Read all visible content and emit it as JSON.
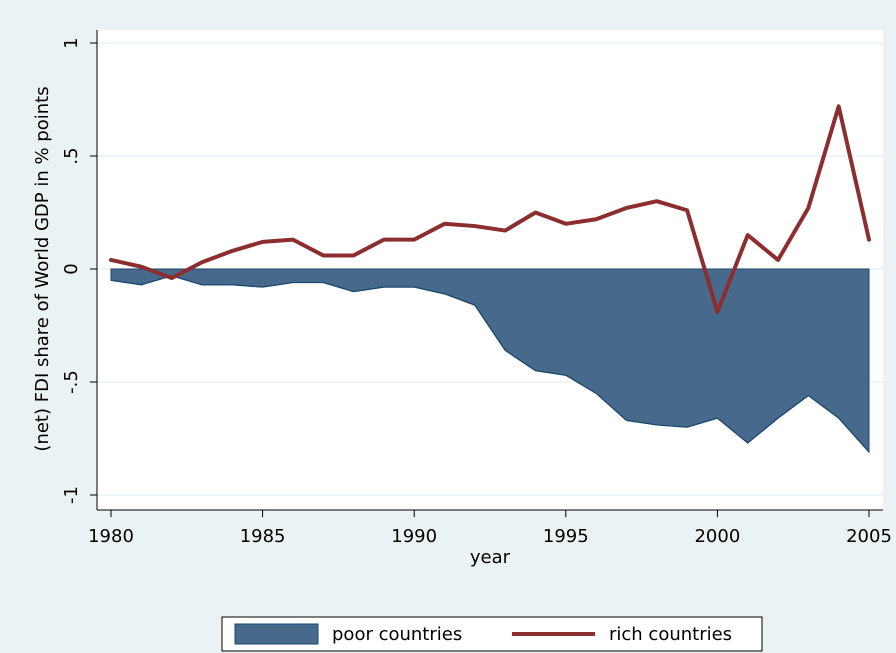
{
  "chart_data": {
    "type": "line",
    "x_label": "year",
    "y_label": "(net) FDI share of World GDP in % points",
    "x": [
      1980,
      1981,
      1982,
      1983,
      1984,
      1985,
      1986,
      1987,
      1988,
      1989,
      1990,
      1991,
      1992,
      1993,
      1994,
      1995,
      1996,
      1997,
      1998,
      1999,
      2000,
      2001,
      2002,
      2003,
      2004,
      2005
    ],
    "series": [
      {
        "name": "poor countries",
        "style": "area",
        "color": "#476a8c",
        "values": [
          -0.05,
          -0.07,
          -0.03,
          -0.07,
          -0.07,
          -0.08,
          -0.06,
          -0.06,
          -0.1,
          -0.08,
          -0.08,
          -0.11,
          -0.16,
          -0.36,
          -0.45,
          -0.47,
          -0.55,
          -0.67,
          -0.69,
          -0.7,
          -0.66,
          -0.77,
          -0.66,
          -0.56,
          -0.66,
          -0.81
        ]
      },
      {
        "name": "rich countries",
        "style": "line",
        "color": "#8c2e30",
        "values": [
          0.04,
          0.01,
          -0.04,
          0.03,
          0.08,
          0.12,
          0.13,
          0.06,
          0.06,
          0.13,
          0.13,
          0.2,
          0.19,
          0.17,
          0.25,
          0.2,
          0.22,
          0.27,
          0.3,
          0.26,
          -0.19,
          0.15,
          0.04,
          0.27,
          0.72,
          0.13
        ]
      }
    ],
    "xlim": [
      1980,
      2005
    ],
    "xticks": [
      1980,
      1985,
      1990,
      1995,
      2000,
      2005
    ],
    "ylim": [
      -1,
      1
    ],
    "yticks": [
      -1,
      {
        "value": -0.5,
        "label": "-.5"
      },
      0,
      {
        "value": 0.5,
        "label": ".5"
      },
      1
    ],
    "grid": true,
    "legend": "bottom"
  }
}
